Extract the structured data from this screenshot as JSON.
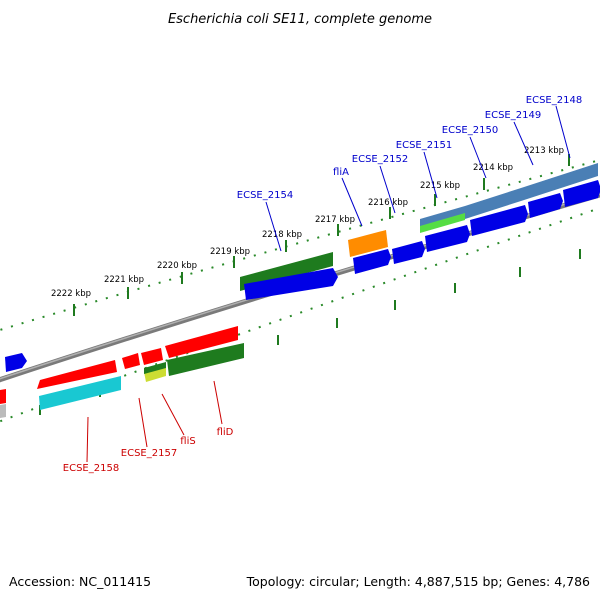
{
  "title": "Escherichia coli SE11, complete genome",
  "footer": {
    "accession": "Accession: NC_011415",
    "stats": "Topology: circular; Length: 4,887,515 bp; Genes: 4,786"
  },
  "colors": {
    "backbone": "#808080",
    "tick_mark": "#1f7a1f",
    "blue_gene": "#0000e6",
    "red_gene": "#ff0000",
    "green_gene": "#1e7b1e",
    "cyan_gene": "#19c8d2",
    "orange_gene": "#ff8c00",
    "steel_gene": "#4a7fb5",
    "lime_gene": "#55dd44",
    "yellow_gene": "#ccdd33",
    "grey_gene": "#bbbbbb",
    "forward_label": "#0000cc",
    "reverse_label": "#cc0000"
  },
  "ticks": [
    "2213 kbp",
    "2214 kbp",
    "2215 kbp",
    "2216 kbp",
    "2217 kbp",
    "2218 kbp",
    "2219 kbp",
    "2220 kbp",
    "2221 kbp",
    "2222 kbp"
  ],
  "forward_labels": [
    "ECSE_2148",
    "ECSE_2149",
    "ECSE_2150",
    "ECSE_2151",
    "ECSE_2152",
    "fliA",
    "ECSE_2154"
  ],
  "reverse_labels": [
    "ECSE_2158",
    "ECSE_2157",
    "fliS",
    "fliD"
  ]
}
